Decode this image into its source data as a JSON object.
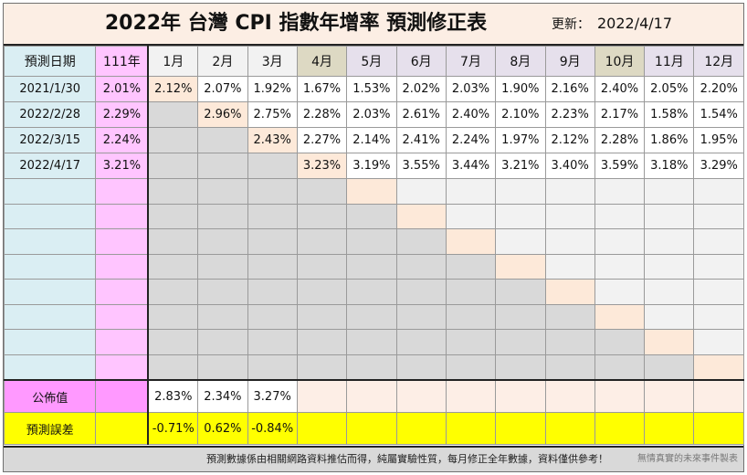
{
  "header": {
    "title": "2022年 台灣 CPI 指數年增率 預測修正表",
    "updated_label": "更新：",
    "updated_value": "2022/4/17"
  },
  "columns": [
    "預測日期",
    "111年",
    "1月",
    "2月",
    "3月",
    "4月",
    "5月",
    "6月",
    "7月",
    "8月",
    "9月",
    "10月",
    "11月",
    "12月"
  ],
  "rows": [
    {
      "date": "2021/1/30",
      "year": "2.01%",
      "months": [
        "2.12%",
        "2.07%",
        "1.92%",
        "1.67%",
        "1.53%",
        "2.02%",
        "2.03%",
        "1.90%",
        "2.16%",
        "2.40%",
        "2.05%",
        "2.20%"
      ]
    },
    {
      "date": "2022/2/28",
      "year": "2.29%",
      "months": [
        "",
        "2.96%",
        "2.75%",
        "2.28%",
        "2.03%",
        "2.61%",
        "2.40%",
        "2.10%",
        "2.23%",
        "2.17%",
        "1.58%",
        "1.54%"
      ]
    },
    {
      "date": "2022/3/15",
      "year": "2.24%",
      "months": [
        "",
        "",
        "2.43%",
        "2.27%",
        "2.14%",
        "2.41%",
        "2.24%",
        "1.97%",
        "2.12%",
        "2.28%",
        "1.86%",
        "1.95%"
      ]
    },
    {
      "date": "2022/4/17",
      "year": "3.21%",
      "months": [
        "",
        "",
        "",
        "3.23%",
        "3.19%",
        "3.55%",
        "3.44%",
        "3.21%",
        "3.40%",
        "3.59%",
        "3.18%",
        "3.29%"
      ]
    }
  ],
  "published": {
    "label": "公佈值",
    "months": [
      "2.83%",
      "2.34%",
      "3.27%"
    ]
  },
  "error": {
    "label": "預測誤差",
    "months": [
      "-0.71%",
      "0.62%",
      "-0.84%"
    ]
  },
  "footer": {
    "note": "預測數據係由相關網路資料推估而得，純屬實驗性質，每月修正全年數據，資料僅供參考！",
    "credit": "無情真實的未來事件製表"
  },
  "colors": {
    "title_bg": "#fceee4",
    "date_col": "#daeef3",
    "year_col": "#ffc5ff",
    "forecast_cell": "#fde9d9",
    "past_cell": "#d9d9d9",
    "error_row": "#ffff00",
    "negative_text": "#c00000"
  }
}
